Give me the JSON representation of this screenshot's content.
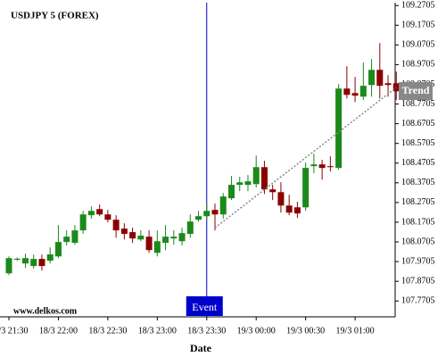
{
  "chart_data": {
    "type": "candlestick",
    "title": "USDJPY 5 (FOREX)",
    "watermark": "www.delkos.com",
    "x_label": "Date",
    "categories": [
      "18/3 21:30",
      null,
      null,
      null,
      null,
      null,
      "18/3 22:00",
      null,
      null,
      null,
      null,
      null,
      "18/3 22:30",
      null,
      null,
      null,
      null,
      null,
      "18/3 23:00",
      null,
      null,
      null,
      null,
      null,
      "18/3 23:30",
      null,
      null,
      null,
      null,
      null,
      "19/3 00:00",
      null,
      null,
      null,
      null,
      null,
      "19/3 00:30",
      null,
      null,
      null,
      null,
      null,
      "19/3 01:00",
      null,
      null,
      null,
      null,
      null
    ],
    "open": [
      107.911,
      107.98,
      107.961,
      107.948,
      107.984,
      107.975,
      107.997,
      108.07,
      108.066,
      108.129,
      108.206,
      108.237,
      108.21,
      108.183,
      108.138,
      108.12,
      108.083,
      108.097,
      108.015,
      108.066,
      108.088,
      108.074,
      108.111,
      108.183,
      108.201,
      108.233,
      108.21,
      108.292,
      108.36,
      108.36,
      108.364,
      108.45,
      108.337,
      108.323,
      108.255,
      108.246,
      108.246,
      108.455,
      108.464,
      108.455,
      108.446,
      108.849,
      108.826,
      108.808,
      108.867,
      108.944,
      108.876,
      108.876
    ],
    "high": [
      107.997,
      107.992,
      108.011,
      108.006,
      108.006,
      108.043,
      108.156,
      108.129,
      108.156,
      108.228,
      108.251,
      108.26,
      108.233,
      108.206,
      108.165,
      108.143,
      108.129,
      108.129,
      108.129,
      108.156,
      108.129,
      108.143,
      108.21,
      108.228,
      108.265,
      108.265,
      108.319,
      108.405,
      108.401,
      108.41,
      108.509,
      108.482,
      108.36,
      108.373,
      108.31,
      108.274,
      108.473,
      108.518,
      108.487,
      108.505,
      108.872,
      108.962,
      108.908,
      108.981,
      108.999,
      109.08,
      108.917,
      108.935
    ],
    "low": [
      107.902,
      107.975,
      107.938,
      107.934,
      107.925,
      107.961,
      107.988,
      108.052,
      108.056,
      108.111,
      108.188,
      108.201,
      108.17,
      108.092,
      108.083,
      108.065,
      108.074,
      108.015,
      107.997,
      108.029,
      108.056,
      108.052,
      108.092,
      108.174,
      108.183,
      108.129,
      108.188,
      108.283,
      108.328,
      108.328,
      108.346,
      108.314,
      108.283,
      108.219,
      108.206,
      108.192,
      108.228,
      108.419,
      108.387,
      108.428,
      108.437,
      108.799,
      108.781,
      108.79,
      108.808,
      108.799,
      108.808,
      108.79
    ],
    "close": [
      107.988,
      107.985,
      107.988,
      107.984,
      107.948,
      108.007,
      108.07,
      108.097,
      108.129,
      108.21,
      108.228,
      108.21,
      108.183,
      108.129,
      108.111,
      108.088,
      108.102,
      108.029,
      108.074,
      108.097,
      108.097,
      108.115,
      108.174,
      108.201,
      108.228,
      108.21,
      108.301,
      108.36,
      108.373,
      108.378,
      108.45,
      108.337,
      108.323,
      108.255,
      108.219,
      108.215,
      108.446,
      108.464,
      108.446,
      108.45,
      108.849,
      108.817,
      108.813,
      108.863,
      108.944,
      108.863,
      108.867,
      108.835
    ],
    "up_color": "#1a8a1a",
    "down_color": "#8b0000",
    "ylim": [
      107.69,
      109.285
    ],
    "yticks": [
      107.7705,
      107.8705,
      107.9705,
      108.0705,
      108.1705,
      108.2705,
      108.3705,
      108.4705,
      108.5705,
      108.6705,
      108.7705,
      108.8705,
      108.9705,
      109.0705,
      109.1705,
      109.2705
    ],
    "event": {
      "label": "Event",
      "index": 24,
      "color": "#0000cc"
    },
    "trend": {
      "label": "Trend",
      "start": [
        25,
        108.142
      ],
      "end": [
        47,
        108.854
      ],
      "color": "#888888"
    }
  }
}
